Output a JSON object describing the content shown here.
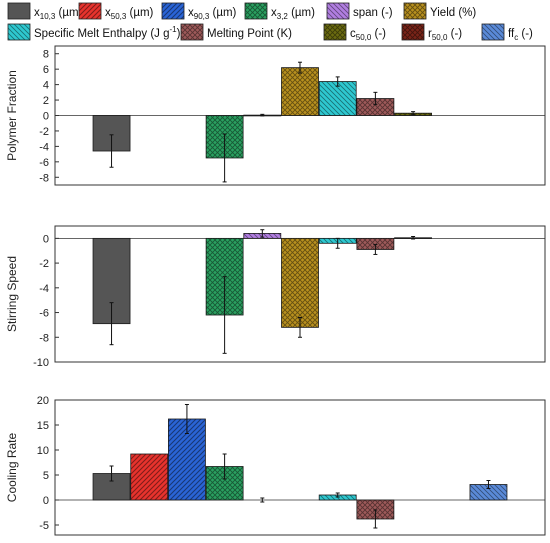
{
  "legend": [
    {
      "key": "x10",
      "label": "x",
      "sub": "10,3",
      "suffix": " (µm)",
      "color": "#555555",
      "pattern": "solid"
    },
    {
      "key": "x50",
      "label": "x",
      "sub": "50,3",
      "suffix": " (µm)",
      "color": "#e8332d",
      "pattern": "diag"
    },
    {
      "key": "x90",
      "label": "x",
      "sub": "90,3",
      "suffix": " (µm)",
      "color": "#2a64d6",
      "pattern": "diag"
    },
    {
      "key": "x32",
      "label": "x",
      "sub": "3,2",
      "suffix": " (µm)",
      "color": "#2aa060",
      "pattern": "check"
    },
    {
      "key": "span",
      "label": "span (-)",
      "sub": "",
      "suffix": "",
      "color": "#b07ee0",
      "pattern": "hatch"
    },
    {
      "key": "yield",
      "label": "Yield (%)",
      "sub": "",
      "suffix": "",
      "color": "#b8901e",
      "pattern": "check"
    },
    {
      "key": "enthalpy",
      "label": "Specific Melt Enthalpy (J g",
      "sub": "",
      "sup": "-1",
      "suffix": ")",
      "color": "#2ec8d0",
      "pattern": "hatch"
    },
    {
      "key": "melting",
      "label": "Melting Point (K)",
      "sub": "",
      "suffix": "",
      "color": "#9e5a5a",
      "pattern": "check"
    },
    {
      "key": "c50",
      "label": "c",
      "sub": "50,0",
      "suffix": " (-)",
      "color": "#6b6b10",
      "pattern": "check"
    },
    {
      "key": "r50",
      "label": "r",
      "sub": "50,0",
      "suffix": " (-)",
      "color": "#7a2418",
      "pattern": "check"
    },
    {
      "key": "ffc",
      "label": "ff",
      "sub": "c",
      "suffix": " (-)",
      "color": "#5a8ad8",
      "pattern": "hatch"
    }
  ],
  "chart_data": [
    {
      "type": "bar",
      "ylabel": "Polymer Fraction",
      "ylim": [
        -9,
        9
      ],
      "yticks": [
        8,
        6,
        4,
        2,
        0,
        -2,
        -4,
        -6,
        -8
      ],
      "categories": [
        "x10",
        "x50",
        "x90",
        "x32",
        "span",
        "yield",
        "enthalpy",
        "melting",
        "c50",
        "r50",
        "ffc"
      ],
      "values": [
        -4.6,
        0,
        0,
        -5.5,
        0.05,
        6.2,
        4.4,
        2.2,
        0.3,
        0,
        0
      ],
      "errors": [
        2.1,
        0,
        0,
        3.1,
        0.1,
        0.7,
        0.6,
        0.8,
        0.2,
        0,
        0
      ]
    },
    {
      "type": "bar",
      "ylabel": "Stirring Speed",
      "ylim": [
        -10,
        1
      ],
      "yticks": [
        0,
        -2,
        -4,
        -6,
        -8,
        -10
      ],
      "categories": [
        "x10",
        "x50",
        "x90",
        "x32",
        "span",
        "yield",
        "enthalpy",
        "melting",
        "c50",
        "r50",
        "ffc"
      ],
      "values": [
        -6.9,
        0,
        0,
        -6.2,
        0.4,
        -7.2,
        -0.4,
        -0.9,
        0.05,
        0,
        0
      ],
      "errors": [
        1.7,
        0,
        0,
        3.1,
        0.3,
        0.8,
        0.4,
        0.4,
        0.1,
        0,
        0
      ]
    },
    {
      "type": "bar",
      "ylabel": "Cooling Rate",
      "ylim": [
        -7,
        20
      ],
      "yticks": [
        20,
        15,
        10,
        5,
        0,
        -5
      ],
      "categories": [
        "x10",
        "x50",
        "x90",
        "x32",
        "span",
        "yield",
        "enthalpy",
        "melting",
        "c50",
        "r50",
        "ffc"
      ],
      "values": [
        5.3,
        9.2,
        16.2,
        6.7,
        0,
        0,
        1.0,
        -3.8,
        0,
        0,
        3.1
      ],
      "errors": [
        1.5,
        0,
        2.9,
        2.5,
        0.4,
        0,
        0.4,
        1.8,
        0,
        0,
        0.8
      ]
    }
  ]
}
